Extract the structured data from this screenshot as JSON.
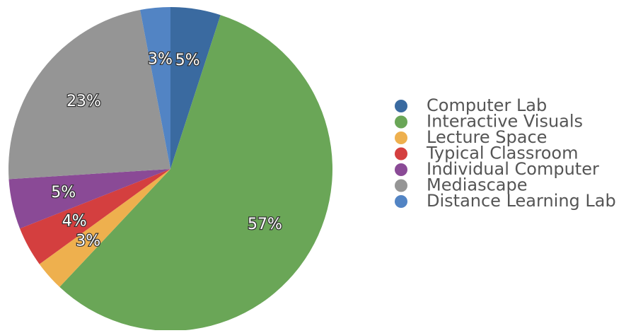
{
  "chart_data": {
    "type": "pie",
    "categories": [
      "Computer Lab",
      "Interactive Visuals",
      "Lecture Space",
      "Typical Classroom",
      "Individual Computer",
      "Mediascape",
      "Distance Learning Lab"
    ],
    "values": [
      5,
      57,
      3,
      4,
      5,
      23,
      3
    ],
    "value_labels": [
      "5%",
      "57%",
      "3%",
      "4%",
      "5%",
      "23%",
      "3%"
    ],
    "colors": [
      "#3a6aa0",
      "#6aa657",
      "#eeb04e",
      "#d43f3f",
      "#8a4a96",
      "#959595",
      "#5284c4"
    ],
    "legend": "right"
  }
}
